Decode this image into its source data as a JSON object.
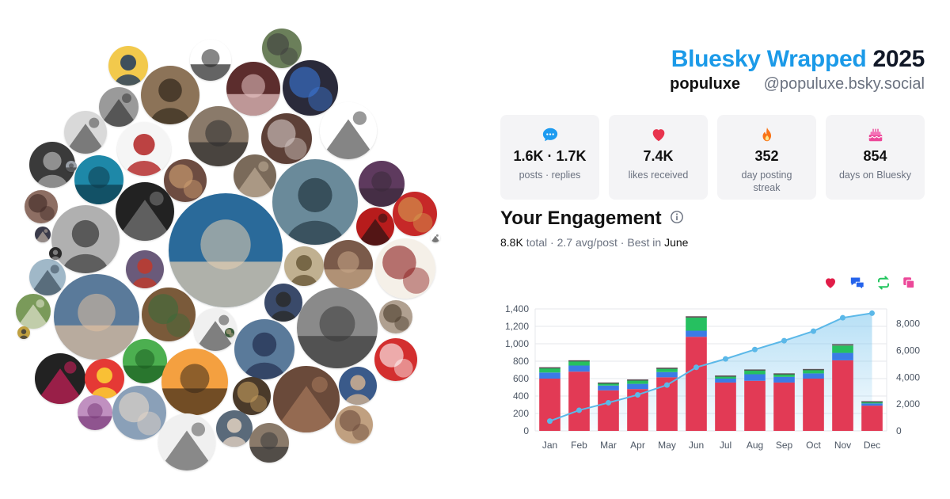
{
  "header": {
    "brand": "Bluesky Wrapped",
    "year": "2025",
    "username": "populuxe",
    "handle": "@populuxe.bsky.social"
  },
  "stats": [
    {
      "icon": "chat-bubble-icon",
      "value": "1.6K · 1.7K",
      "label": "posts · replies",
      "color": "#1d9bf0"
    },
    {
      "icon": "heart-icon",
      "value": "7.4K",
      "label": "likes received",
      "color": "#e8344e"
    },
    {
      "icon": "flame-icon",
      "value": "352",
      "label": "day posting streak",
      "color": "#f97316"
    },
    {
      "icon": "cake-icon",
      "value": "854",
      "label": "days on Bluesky",
      "color": "#ec4899"
    }
  ],
  "engagement": {
    "title": "Your Engagement",
    "total": "8.8K",
    "total_label": "total",
    "avg": "2.7 avg/post",
    "best_label": "Best in",
    "best_month": "June"
  },
  "legend_icons": [
    {
      "name": "likes-legend-icon",
      "color": "#e11d48"
    },
    {
      "name": "replies-legend-icon",
      "color": "#2563eb"
    },
    {
      "name": "reposts-legend-icon",
      "color": "#22c55e"
    },
    {
      "name": "quotes-legend-icon",
      "color": "#ec4899"
    }
  ],
  "chart_data": {
    "type": "bar",
    "stacked": true,
    "categories": [
      "Jan",
      "Feb",
      "Mar",
      "Apr",
      "May",
      "Jun",
      "Jul",
      "Aug",
      "Sep",
      "Oct",
      "Nov",
      "Dec"
    ],
    "series": [
      {
        "values": [
          600,
          680,
          465,
          480,
          615,
          1080,
          555,
          575,
          555,
          600,
          810,
          290
        ],
        "color": "#e23a55"
      },
      {
        "values": [
          70,
          70,
          55,
          60,
          60,
          70,
          45,
          75,
          65,
          60,
          85,
          25
        ],
        "color": "#3b7be6"
      },
      {
        "values": [
          50,
          50,
          30,
          40,
          40,
          150,
          30,
          45,
          30,
          40,
          85,
          20
        ],
        "color": "#26c060"
      },
      {
        "values": [
          10,
          10,
          5,
          10,
          10,
          15,
          5,
          10,
          10,
          10,
          15,
          5
        ],
        "color": "#f06292"
      }
    ],
    "cumulative": {
      "values": [
        730,
        1540,
        2100,
        2690,
        3420,
        4740,
        5370,
        6070,
        6730,
        7440,
        8440,
        8780
      ],
      "color": "#5bb8e8"
    },
    "ylim_left": [
      0,
      1400
    ],
    "yticks_left": [
      "0",
      "200",
      "400",
      "600",
      "800",
      "1,000",
      "1,200",
      "1,400"
    ],
    "ylim_right": [
      0,
      9100
    ],
    "yticks_right": [
      "0",
      "2,000",
      "4,000",
      "6,000",
      "8,000"
    ],
    "grid": true
  },
  "avatars": [
    {
      "name": "avatar-1",
      "c1": "#f2c94c",
      "c2": "#1e3a5f"
    },
    {
      "name": "avatar-2",
      "c1": "#ffffff",
      "c2": "#222222"
    },
    {
      "name": "avatar-3",
      "c1": "#6b7f5a",
      "c2": "#3d3d3d"
    },
    {
      "name": "avatar-4",
      "c1": "#9a9a9a",
      "c2": "#2a2a2a"
    },
    {
      "name": "avatar-5",
      "c1": "#8c7358",
      "c2": "#3f3324"
    },
    {
      "name": "avatar-6",
      "c1": "#5c2d2d",
      "c2": "#e8c4c4"
    },
    {
      "name": "avatar-7",
      "c1": "#2a2a3a",
      "c2": "#3b78d8"
    },
    {
      "name": "avatar-8",
      "c1": "#d9d9d9",
      "c2": "#3a3a3a"
    },
    {
      "name": "avatar-9",
      "c1": "#f5f5f5",
      "c2": "#b22222"
    },
    {
      "name": "avatar-10",
      "c1": "#8a7a6a",
      "c2": "#2e2e2e"
    },
    {
      "name": "avatar-11",
      "c1": "#5d4037",
      "c2": "#d7ccc8"
    },
    {
      "name": "avatar-12",
      "c1": "#ffffff",
      "c2": "#333333"
    },
    {
      "name": "avatar-13",
      "c1": "#3a3a3a",
      "c2": "#a0a0a0"
    },
    {
      "name": "avatar-14",
      "c1": "#1e88a8",
      "c2": "#0d3b4a"
    },
    {
      "name": "avatar-15",
      "c1": "#6d4c41",
      "c2": "#d4a373"
    },
    {
      "name": "avatar-16",
      "c1": "#7a6a5a",
      "c2": "#c9b8a0"
    },
    {
      "name": "avatar-17",
      "c1": "#6a8a9a",
      "c2": "#2e4450"
    },
    {
      "name": "avatar-18",
      "c1": "#5e3a5e",
      "c2": "#3a2a3a"
    },
    {
      "name": "avatar-19",
      "c1": "#8d6e63",
      "c2": "#3e2723"
    },
    {
      "name": "avatar-20",
      "c1": "#222222",
      "c2": "#888888"
    },
    {
      "name": "avatar-21",
      "c1": "#b0b0b0",
      "c2": "#4a4a4a"
    },
    {
      "name": "avatar-22",
      "c1": "#2a6a9a",
      "c2": "#e8d0b0"
    },
    {
      "name": "avatar-23",
      "c1": "#c62828",
      "c2": "#d4a050"
    },
    {
      "name": "avatar-24",
      "c1": "#b71c1c",
      "c2": "#111111"
    },
    {
      "name": "avatar-25",
      "c1": "#c0b090",
      "c2": "#6a5a3a"
    },
    {
      "name": "avatar-26",
      "c1": "#7a5a4a",
      "c2": "#c8a888"
    },
    {
      "name": "avatar-27",
      "c1": "#f5f0e8",
      "c2": "#8b1a1a"
    },
    {
      "name": "avatar-28",
      "c1": "#a0b8c8",
      "c2": "#2a3a4a"
    },
    {
      "name": "avatar-29",
      "c1": "#6a5a7a",
      "c2": "#c0392b"
    },
    {
      "name": "avatar-30",
      "c1": "#5a7a9a",
      "c2": "#e0c0a0"
    },
    {
      "name": "avatar-31",
      "c1": "#7a5a3a",
      "c2": "#3a6a3a"
    },
    {
      "name": "avatar-32",
      "c1": "#f0f0f0",
      "c2": "#333333"
    },
    {
      "name": "avatar-33",
      "c1": "#3a4a6a",
      "c2": "#2a2a2a"
    },
    {
      "name": "avatar-34",
      "c1": "#8a8a8a",
      "c2": "#3a3a3a"
    },
    {
      "name": "avatar-35",
      "c1": "#b0a090",
      "c2": "#4a3a2a"
    },
    {
      "name": "avatar-36",
      "c1": "#7a9a5a",
      "c2": "#f0f0e0"
    },
    {
      "name": "avatar-37",
      "c1": "#5a7a9a",
      "c2": "#2a3a5a"
    },
    {
      "name": "avatar-38",
      "c1": "#4caf50",
      "c2": "#1b5e20"
    },
    {
      "name": "avatar-39",
      "c1": "#d32f2f",
      "c2": "#ffffff"
    },
    {
      "name": "avatar-40",
      "c1": "#222222",
      "c2": "#e91e63"
    },
    {
      "name": "avatar-41",
      "c1": "#e53935",
      "c2": "#fdd835"
    },
    {
      "name": "avatar-42",
      "c1": "#f4a040",
      "c2": "#3a2a1a"
    },
    {
      "name": "avatar-43",
      "c1": "#4a3a2a",
      "c2": "#c8a060"
    },
    {
      "name": "avatar-44",
      "c1": "#6a4a3a",
      "c2": "#b08060"
    },
    {
      "name": "avatar-45",
      "c1": "#3a5a8a",
      "c2": "#d0b090"
    },
    {
      "name": "avatar-46",
      "c1": "#c090c0",
      "c2": "#7a3a7a"
    },
    {
      "name": "avatar-47",
      "c1": "#8aa0b8",
      "c2": "#e8d8c8"
    },
    {
      "name": "avatar-48",
      "c1": "#f0f0f0",
      "c2": "#444444"
    },
    {
      "name": "avatar-49",
      "c1": "#5a6a7a",
      "c2": "#e0d0c0"
    },
    {
      "name": "avatar-50",
      "c1": "#8a7a6a",
      "c2": "#3a3a3a"
    },
    {
      "name": "avatar-51",
      "c1": "#c0a080",
      "c2": "#6a4a3a"
    },
    {
      "name": "avatar-52",
      "c1": "#3a3a4a",
      "c2": "#d0c0b0"
    },
    {
      "name": "avatar-53",
      "c1": "#2a2a2a",
      "c2": "#8a8a8a"
    },
    {
      "name": "avatar-54",
      "c1": "#9aa0a8",
      "c2": "#3a3a3a"
    },
    {
      "name": "avatar-55",
      "c1": "#3a5a3a",
      "c2": "#c8b090"
    },
    {
      "name": "avatar-56",
      "c1": "#ffffff",
      "c2": "#1b1b1b"
    },
    {
      "name": "avatar-57",
      "c1": "#c0a040",
      "c2": "#3a3a3a"
    },
    {
      "name": "avatar-58",
      "c1": "#a05a3a",
      "c2": "#e0c0a0"
    }
  ]
}
